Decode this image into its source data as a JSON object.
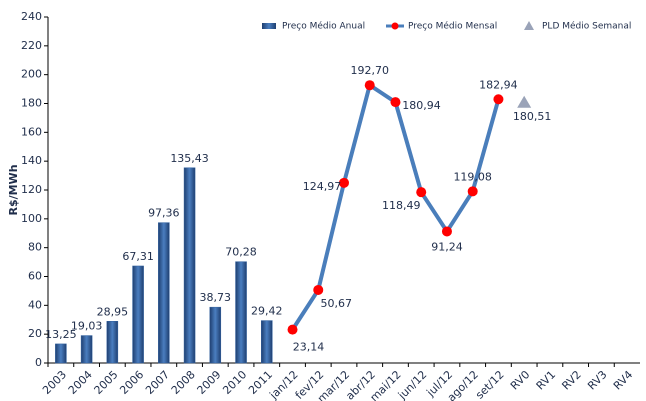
{
  "chart_data": {
    "type": "bar-line",
    "y_label": "R$/MWh",
    "categories": [
      "2003",
      "2004",
      "2005",
      "2006",
      "2007",
      "2008",
      "2009",
      "2010",
      "2011",
      "jan/12",
      "fev/12",
      "mar/12",
      "abr/12",
      "mai/12",
      "jun/12",
      "jul/12",
      "ago/12",
      "set/12",
      "RV0",
      "RV1",
      "RV2",
      "RV3",
      "RV4"
    ],
    "series": [
      {
        "name": "Preço Médio Anual",
        "type": "bar",
        "color": "#2f5f9e",
        "values": [
          13.25,
          19.03,
          28.95,
          67.31,
          97.36,
          135.43,
          38.73,
          70.28,
          29.42,
          null,
          null,
          null,
          null,
          null,
          null,
          null,
          null,
          null,
          null,
          null,
          null,
          null,
          null
        ],
        "value_labels": [
          "13,25",
          "19,03",
          "28,95",
          "67,31",
          "97,36",
          "135,43",
          "38,73",
          "70,28",
          "29,42",
          null,
          null,
          null,
          null,
          null,
          null,
          null,
          null,
          null,
          null,
          null,
          null,
          null,
          null
        ]
      },
      {
        "name": "Preço Médio Mensal",
        "type": "line",
        "color": "#4a7ebb",
        "marker_color": "#ff0000",
        "values": [
          null,
          null,
          null,
          null,
          null,
          null,
          null,
          null,
          null,
          23.14,
          50.67,
          124.97,
          192.7,
          180.94,
          118.49,
          91.24,
          119.08,
          182.94,
          null,
          null,
          null,
          null,
          null
        ],
        "value_labels": [
          null,
          null,
          null,
          null,
          null,
          null,
          null,
          null,
          null,
          "23,14",
          "50,67",
          "124,97",
          "192,70",
          "180,94",
          "118,49",
          "91,24",
          "119,08",
          "182,94",
          null,
          null,
          null,
          null,
          null
        ]
      },
      {
        "name": "PLD Médio Semanal",
        "type": "triangle",
        "color": "#9aa3b8",
        "values": [
          null,
          null,
          null,
          null,
          null,
          null,
          null,
          null,
          null,
          null,
          null,
          null,
          null,
          null,
          null,
          null,
          null,
          null,
          180.51,
          null,
          null,
          null,
          null
        ],
        "value_labels": [
          null,
          null,
          null,
          null,
          null,
          null,
          null,
          null,
          null,
          null,
          null,
          null,
          null,
          null,
          null,
          null,
          null,
          null,
          "180,51",
          null,
          null,
          null,
          null
        ]
      }
    ],
    "ylim": [
      0,
      240
    ],
    "yticks": [
      0,
      20,
      40,
      60,
      80,
      100,
      120,
      140,
      160,
      180,
      200,
      220,
      240
    ],
    "grid": false,
    "legend": "top-right"
  }
}
